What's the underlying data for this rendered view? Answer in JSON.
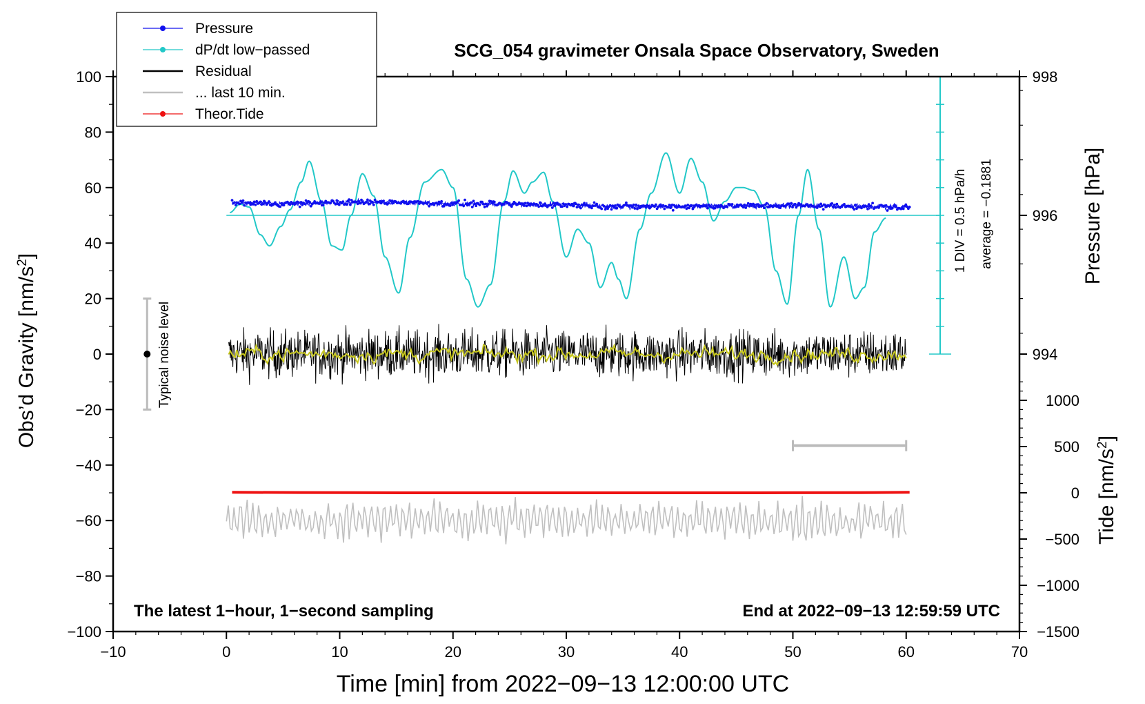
{
  "chart_data": {
    "type": "line",
    "title": "SCG_054 gravimeter Onsala Space Observatory, Sweden",
    "xlabel": "Time [min] from 2022−09−13 12:00:00 UTC",
    "ylabel_left": "Obs’d Gravity [nm/s",
    "ylabel_left_sup": "2",
    "ylabel_left_end": "]",
    "ylabel_right_top": "Pressure [hPa]",
    "ylabel_right_bottom": "Tide [nm/s",
    "ylabel_right_bottom_sup": "2",
    "ylabel_right_bottom_end": "]",
    "xlim": [
      -10,
      70
    ],
    "ylim": [
      -100,
      100
    ],
    "x_ticks": [
      -10,
      0,
      10,
      20,
      30,
      40,
      50,
      60,
      70
    ],
    "x_tick_labels": [
      "−10",
      "0",
      "10",
      "20",
      "30",
      "40",
      "50",
      "60",
      "70"
    ],
    "y_ticks": [
      -100,
      -80,
      -60,
      -40,
      -20,
      0,
      20,
      40,
      60,
      80,
      100
    ],
    "y_tick_labels": [
      "−100",
      "−80",
      "−60",
      "−40",
      "−20",
      "0",
      "20",
      "40",
      "60",
      "80",
      "100"
    ],
    "pressure_axis": {
      "gravity_at_996": 50,
      "gravity_per_hpa": 25,
      "ticks": [
        994,
        996,
        998
      ],
      "tick_labels": [
        "994",
        "996",
        "998"
      ]
    },
    "tide_axis": {
      "gravity_at_0": -50,
      "gravity_per_500": 16.667,
      "ticks": [
        -1500,
        -1000,
        -500,
        0,
        500,
        1000
      ],
      "tick_labels": [
        "−1500",
        "−1000",
        "−500",
        "0",
        "500",
        "1000"
      ]
    },
    "dpdt_scale": {
      "x": 63,
      "baseline": 0,
      "top": 100,
      "divisions": 10,
      "label": "1 DIV = 0.5 hPa/h",
      "average_label": "average = −0.1881"
    },
    "noise_bar": {
      "x": -7,
      "center": 0,
      "half_range": 20,
      "label": "Typical noise level"
    },
    "last10_bar": {
      "x_start": 50,
      "x_end": 60,
      "y": -33
    },
    "legend": [
      {
        "label": "Pressure",
        "color": "#1010ee",
        "style": "line-dot"
      },
      {
        "label": "dP/dt low−passed",
        "color": "#22c8c8",
        "style": "line-dot"
      },
      {
        "label": "Residual",
        "color": "#000000",
        "style": "line"
      },
      {
        "label": "... last 10 min.",
        "color": "#c0c0c0",
        "style": "line"
      },
      {
        "label": "Theor.Tide",
        "color": "#ee1111",
        "style": "line-dot"
      }
    ],
    "series": [
      {
        "name": "Pressure (plotted in gravity units)",
        "color": "#1010ee",
        "x": [
          0.5,
          5,
          10,
          15,
          20,
          25,
          30,
          35,
          40,
          45,
          50,
          55,
          60.3
        ],
        "y": [
          54.5,
          54.2,
          54.6,
          54.8,
          54.2,
          54.0,
          53.8,
          53.2,
          53.2,
          53.4,
          53.5,
          53.3,
          52.8
        ]
      },
      {
        "name": "dP/dt low-passed",
        "color": "#22c8c8",
        "x": [
          0.3,
          1.2,
          2.0,
          3.0,
          3.8,
          4.8,
          5.6,
          6.6,
          7.3,
          8.4,
          9.3,
          10.2,
          11.0,
          12.0,
          13.0,
          14.0,
          15.2,
          16.2,
          17.5,
          19.0,
          20.0,
          21.2,
          22.2,
          23.3,
          24.5,
          25.3,
          26.3,
          27.0,
          28.0,
          28.8,
          30.0,
          31.0,
          32.0,
          33.0,
          34.0,
          34.6,
          35.3,
          36.5,
          37.5,
          38.8,
          40.0,
          41.0,
          42.0,
          43.0,
          44.0,
          45.0,
          45.6,
          46.5,
          47.5,
          48.5,
          49.5,
          50.5,
          51.3,
          52.3,
          53.3,
          54.5,
          55.5,
          56.3,
          57.2,
          58.2
        ],
        "y": [
          51,
          54,
          53,
          43,
          39,
          46,
          52,
          62,
          69.5,
          55,
          39,
          37.5,
          50,
          65,
          57,
          35,
          22,
          42,
          62,
          66.5,
          60,
          27,
          17,
          25,
          55,
          66,
          58,
          62,
          65.5,
          55,
          35,
          45,
          40,
          24,
          33,
          27,
          20,
          45,
          58,
          72.5,
          58,
          70.5,
          62,
          48,
          55,
          60,
          60,
          59,
          53,
          30,
          18,
          50,
          66.5,
          45,
          17,
          35,
          20,
          24,
          44,
          49
        ]
      },
      {
        "name": "Residual",
        "color": "#000000",
        "x_range": [
          0.2,
          60
        ],
        "center": 0,
        "typical_amplitude": 10
      },
      {
        "name": "Residual (smoothed)",
        "color": "#c8c820",
        "x_range": [
          0.2,
          60
        ],
        "center": 0,
        "typical_amplitude": 2
      },
      {
        "name": "Theor.Tide",
        "color": "#ee1111",
        "x": [
          0.5,
          6.5,
          15.5,
          30,
          47,
          56,
          60.3
        ],
        "y_tide": [
          5,
          3,
          0,
          0,
          0,
          2,
          5
        ]
      },
      {
        "name": "Residual, last 10 min (offset)",
        "color": "#c0c0c0",
        "x_range": [
          0,
          60
        ],
        "center": -60,
        "typical_amplitude": 6
      }
    ]
  },
  "annotations": {
    "bottom_left": "The latest 1−hour, 1−second sampling",
    "bottom_right": "End at 2022−09−13 12:59:59 UTC"
  }
}
